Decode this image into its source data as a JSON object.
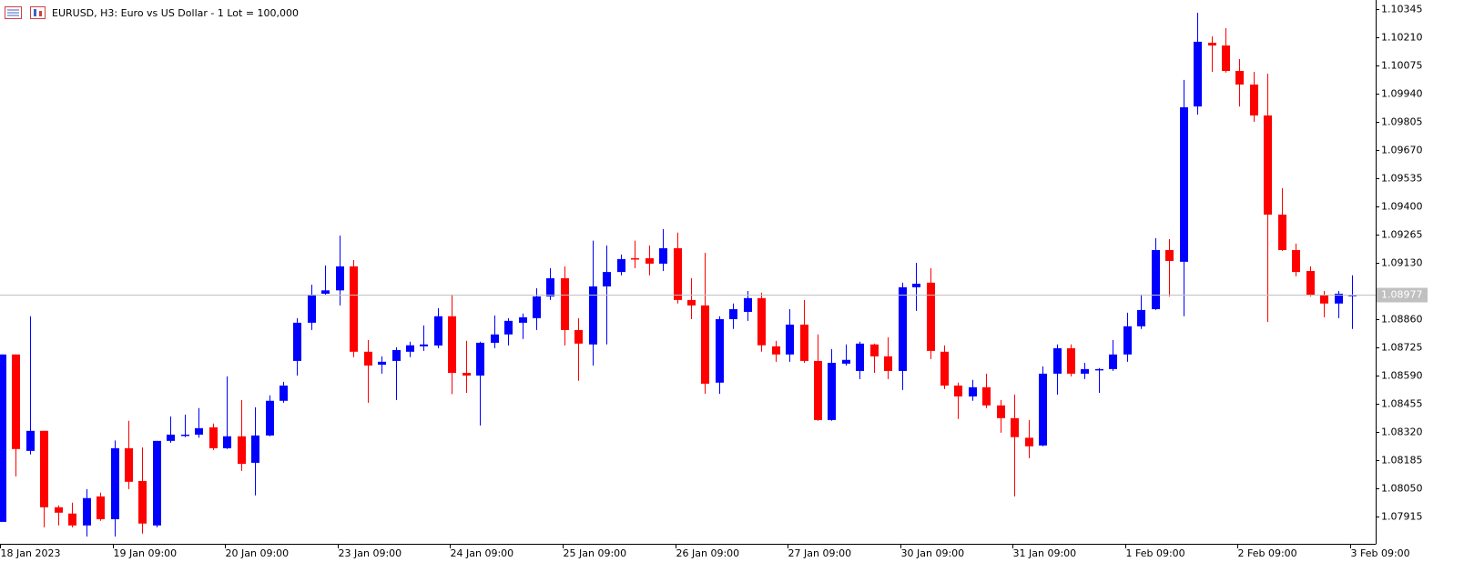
{
  "chart_data": {
    "type": "candlestick",
    "title": "EURUSD, H3:  Euro vs US Dollar - 1 Lot = 100,000",
    "up_color": "#0000ff",
    "down_color": "#ff0000",
    "open": [
      1.07889,
      1.08691,
      1.08229,
      1.08325,
      1.07959,
      1.07929,
      1.07872,
      1.08011,
      1.07902,
      1.08242,
      1.08085,
      1.07872,
      1.08277,
      1.08303,
      1.08307,
      1.08342,
      1.08242,
      1.08299,
      1.08172,
      1.08303,
      1.08469,
      1.0866,
      1.08843,
      1.08982,
      1.08998,
      1.09113,
      1.08704,
      1.08642,
      1.0866,
      1.08704,
      1.0873,
      1.08734,
      1.08874,
      1.08603,
      1.0859,
      1.08747,
      1.08787,
      1.08843,
      1.08865,
      1.08969,
      1.09056,
      1.08808,
      1.08739,
      1.09017,
      1.09086,
      1.09152,
      1.09152,
      1.09126,
      1.092,
      1.08952,
      1.08926,
      1.08556,
      1.0886,
      1.08895,
      1.08961,
      1.0873,
      1.08691,
      1.08834,
      1.0866,
      1.08377,
      1.08647,
      1.08612,
      1.08739,
      1.08682,
      1.08612,
      1.09013,
      1.09035,
      1.08704,
      1.08542,
      1.0849,
      1.08534,
      1.08447,
      1.08386,
      1.08292,
      1.08255,
      1.08599,
      1.08721,
      1.08599,
      1.08617,
      1.08621,
      1.08691,
      1.08826,
      1.08908,
      1.09191,
      1.09135,
      1.09879,
      1.10184,
      1.10171,
      1.10049,
      1.09984,
      1.09836,
      1.09361,
      1.09191,
      1.09091,
      1.08974,
      1.08935,
      1.08974
    ],
    "high": [
      1.08691,
      1.08691,
      1.08874,
      1.08325,
      1.07968,
      1.07981,
      1.08046,
      1.08029,
      1.08279,
      1.08373,
      1.08246,
      1.08277,
      1.08394,
      1.08403,
      1.08434,
      1.0836,
      1.08586,
      1.08473,
      1.08438,
      1.08495,
      1.0856,
      1.08865,
      1.09025,
      1.09117,
      1.09261,
      1.09143,
      1.0876,
      1.08682,
      1.08725,
      1.08752,
      1.0883,
      1.08913,
      1.08978,
      1.08756,
      1.08752,
      1.08878,
      1.08865,
      1.08887,
      1.09008,
      1.09104,
      1.09113,
      1.08865,
      1.09236,
      1.09213,
      1.0917,
      1.09236,
      1.09213,
      1.09292,
      1.09275,
      1.09056,
      1.09178,
      1.08874,
      1.08935,
      1.08995,
      1.08987,
      1.08756,
      1.08908,
      1.08952,
      1.08787,
      1.08717,
      1.08739,
      1.08752,
      1.08743,
      1.08773,
      1.09035,
      1.0913,
      1.09104,
      1.08734,
      1.08556,
      1.08569,
      1.08599,
      1.08473,
      1.08499,
      1.08377,
      1.08634,
      1.08739,
      1.08739,
      1.08651,
      1.08626,
      1.0876,
      1.08891,
      1.08978,
      1.09248,
      1.09244,
      1.10006,
      1.10328,
      1.10215,
      1.10254,
      1.10106,
      1.10045,
      1.10036,
      1.09487,
      1.09222,
      1.09113,
      1.08995,
      1.08995,
      1.0907
    ],
    "low": [
      1.07889,
      1.08107,
      1.08212,
      1.07863,
      1.07872,
      1.07863,
      1.07819,
      1.07894,
      1.07819,
      1.08046,
      1.07833,
      1.07863,
      1.08268,
      1.08295,
      1.08292,
      1.08233,
      1.08238,
      1.08133,
      1.08016,
      1.08299,
      1.0846,
      1.0859,
      1.08808,
      1.08974,
      1.08926,
      1.08678,
      1.0846,
      1.08599,
      1.08473,
      1.08678,
      1.08708,
      1.08721,
      1.08501,
      1.08507,
      1.08351,
      1.08721,
      1.08734,
      1.08765,
      1.08808,
      1.08952,
      1.08734,
      1.08565,
      1.08638,
      1.08739,
      1.0907,
      1.09104,
      1.0907,
      1.09091,
      1.08935,
      1.0886,
      1.08503,
      1.08503,
      1.08813,
      1.08852,
      1.08704,
      1.08656,
      1.08656,
      1.08651,
      1.08373,
      1.08373,
      1.08638,
      1.08573,
      1.08603,
      1.08573,
      1.08521,
      1.089,
      1.08669,
      1.08525,
      1.08382,
      1.08469,
      1.08434,
      1.08316,
      1.08011,
      1.08194,
      1.08251,
      1.08499,
      1.08586,
      1.08573,
      1.08507,
      1.08612,
      1.08656,
      1.08813,
      1.08904,
      1.08969,
      1.08874,
      1.0984,
      1.10045,
      1.10041,
      1.09879,
      1.09805,
      1.08847,
      1.09187,
      1.09065,
      1.08969,
      1.08869,
      1.08865,
      1.08813
    ],
    "close": [
      1.08691,
      1.08238,
      1.08325,
      1.07959,
      1.07933,
      1.07872,
      1.08003,
      1.07902,
      1.08242,
      1.08081,
      1.07881,
      1.08277,
      1.08307,
      1.08307,
      1.08338,
      1.08242,
      1.08299,
      1.08167,
      1.08303,
      1.08469,
      1.08542,
      1.08843,
      1.08978,
      1.08998,
      1.09113,
      1.08704,
      1.08638,
      1.08656,
      1.08712,
      1.08735,
      1.08739,
      1.08874,
      1.08603,
      1.0859,
      1.08747,
      1.08787,
      1.08852,
      1.08869,
      1.08969,
      1.09056,
      1.08808,
      1.08743,
      1.09017,
      1.09086,
      1.09148,
      1.09148,
      1.09126,
      1.092,
      1.08952,
      1.08926,
      1.08551,
      1.0886,
      1.08908,
      1.08961,
      1.08735,
      1.08691,
      1.08834,
      1.0866,
      1.08377,
      1.08651,
      1.08665,
      1.08743,
      1.08682,
      1.08612,
      1.09013,
      1.0903,
      1.08708,
      1.08542,
      1.0849,
      1.08534,
      1.08447,
      1.08386,
      1.08295,
      1.08251,
      1.08599,
      1.08721,
      1.08599,
      1.08621,
      1.08621,
      1.08691,
      1.08826,
      1.08904,
      1.09191,
      1.09139,
      1.09875,
      1.10189,
      1.10171,
      1.10049,
      1.09984,
      1.09836,
      1.09361,
      1.09191,
      1.09086,
      1.08974,
      1.08935,
      1.08982,
      1.08977
    ],
    "last_price": 1.08977,
    "last_price_color": "#c0c0c0",
    "ylim": [
      1.07784,
      1.10389
    ],
    "yticks": [
      1.10345,
      {
        "value": 1.1021,
        "label": "1.10210"
      },
      1.10075,
      {
        "value": 1.0994,
        "label": "1.09940"
      },
      1.09805,
      {
        "value": 1.0967,
        "label": "1.09670"
      },
      1.09535,
      {
        "value": 1.094,
        "label": "1.09400"
      },
      1.09265,
      {
        "value": 1.0913,
        "label": "1.09130"
      },
      {
        "value": 1.0886,
        "label": "1.08860"
      },
      1.08725,
      {
        "value": 1.0859,
        "label": "1.08590"
      },
      1.08455,
      {
        "value": 1.0832,
        "label": "1.08320"
      },
      1.08185,
      {
        "value": 1.0805,
        "label": "1.08050"
      },
      1.07915
    ],
    "xticks": [
      {
        "value": 0,
        "label": "18 Jan 2023"
      },
      {
        "value": 8,
        "label": "19 Jan 09:00"
      },
      {
        "value": 16,
        "label": "20 Jan 09:00"
      },
      {
        "value": 24,
        "label": "23 Jan 09:00"
      },
      {
        "value": 32,
        "label": "24 Jan 09:00"
      },
      {
        "value": 40,
        "label": "25 Jan 09:00"
      },
      {
        "value": 48,
        "label": "26 Jan 09:00"
      },
      {
        "value": 56,
        "label": "27 Jan 09:00"
      },
      {
        "value": 64,
        "label": "30 Jan 09:00"
      },
      {
        "value": 72,
        "label": "31 Jan 09:00"
      },
      {
        "value": 80,
        "label": "1 Feb 09:00"
      },
      {
        "value": 88,
        "label": "2 Feb 09:00"
      },
      {
        "value": 96,
        "label": "3 Feb 09:00"
      }
    ]
  }
}
